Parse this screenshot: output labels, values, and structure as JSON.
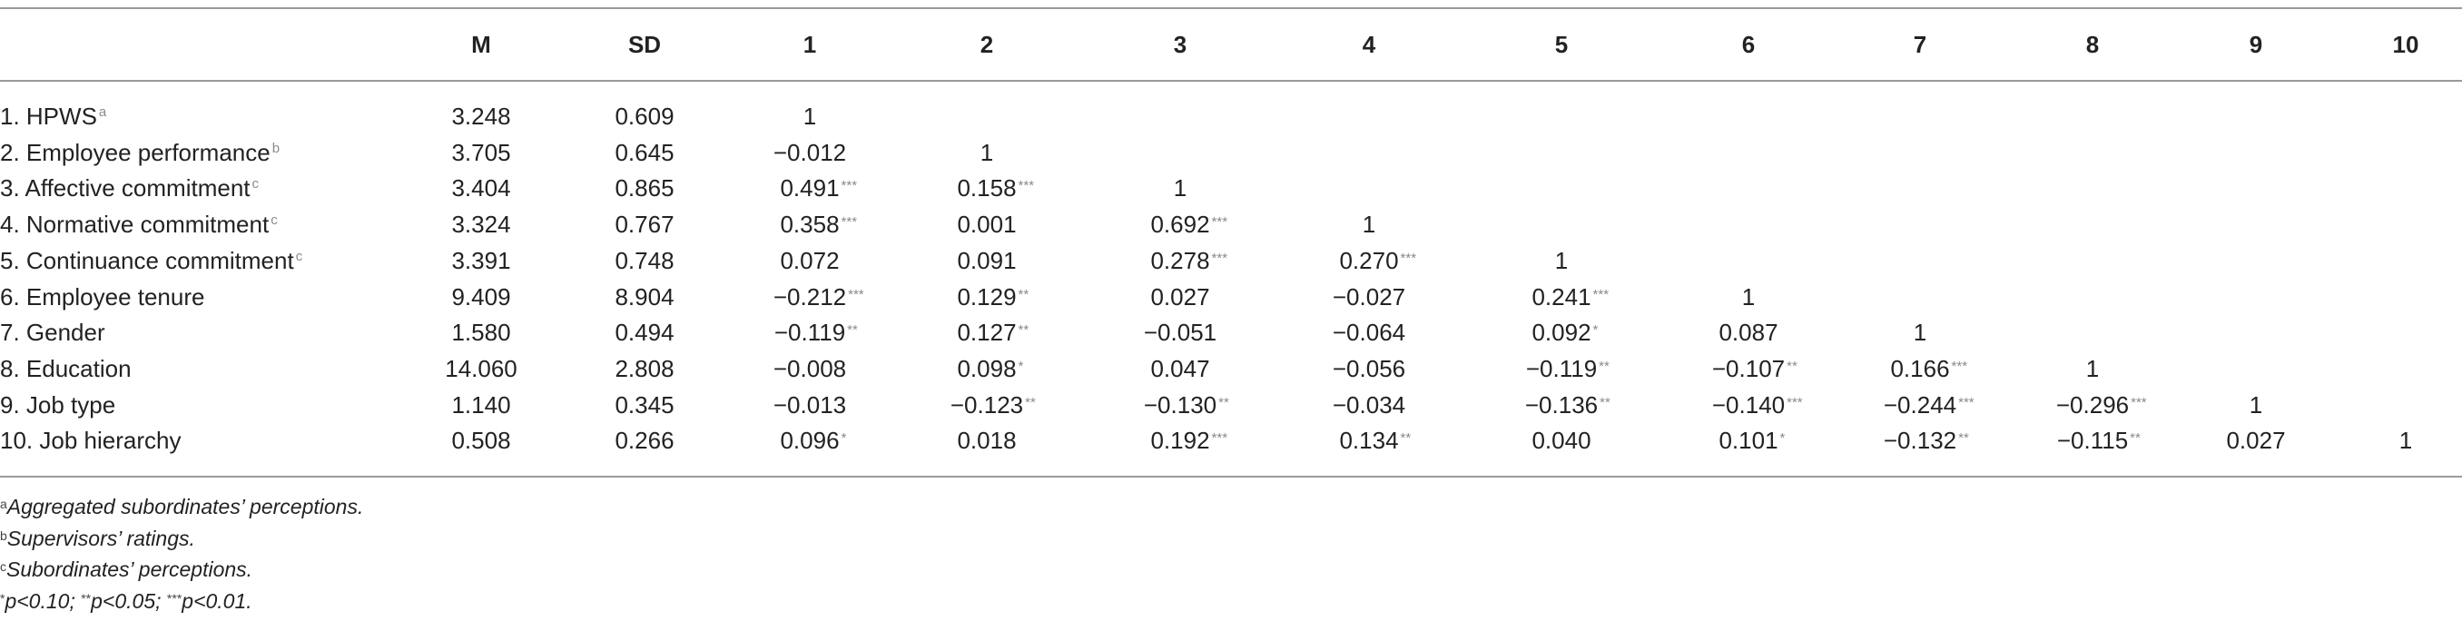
{
  "table": {
    "header": [
      "M",
      "SD",
      "1",
      "2",
      "3",
      "4",
      "5",
      "6",
      "7",
      "8",
      "9",
      "10"
    ],
    "rows": [
      {
        "label": "1. HPWS",
        "sup": "a",
        "cells": [
          {
            "text": "3.248"
          },
          {
            "text": "0.609"
          },
          {
            "text": "1"
          }
        ]
      },
      {
        "label": "2. Employee performance",
        "sup": "b",
        "cells": [
          {
            "text": "3.705"
          },
          {
            "text": "0.645"
          },
          {
            "text": "−0.012"
          },
          {
            "text": "1"
          }
        ]
      },
      {
        "label": "3. Affective commitment",
        "sup": "c",
        "cells": [
          {
            "text": "3.404"
          },
          {
            "text": "0.865"
          },
          {
            "text": "0.491",
            "sup": "***"
          },
          {
            "text": "0.158",
            "sup": "***"
          },
          {
            "text": "1"
          }
        ]
      },
      {
        "label": "4. Normative commitment",
        "sup": "c",
        "cells": [
          {
            "text": "3.324"
          },
          {
            "text": "0.767"
          },
          {
            "text": "0.358",
            "sup": "***"
          },
          {
            "text": "0.001"
          },
          {
            "text": "0.692",
            "sup": "***"
          },
          {
            "text": "1"
          }
        ]
      },
      {
        "label": "5. Continuance commitment",
        "sup": "c",
        "cells": [
          {
            "text": "3.391"
          },
          {
            "text": "0.748"
          },
          {
            "text": "0.072"
          },
          {
            "text": "0.091"
          },
          {
            "text": "0.278",
            "sup": "***"
          },
          {
            "text": "0.270",
            "sup": "***"
          },
          {
            "text": "1"
          }
        ]
      },
      {
        "label": "6. Employee tenure",
        "cells": [
          {
            "text": "9.409"
          },
          {
            "text": "8.904"
          },
          {
            "text": "−0.212",
            "sup": "***"
          },
          {
            "text": "0.129",
            "sup": "**"
          },
          {
            "text": "0.027"
          },
          {
            "text": "−0.027"
          },
          {
            "text": "0.241",
            "sup": "***"
          },
          {
            "text": "1"
          }
        ]
      },
      {
        "label": "7. Gender",
        "cells": [
          {
            "text": "1.580"
          },
          {
            "text": "0.494"
          },
          {
            "text": "−0.119",
            "sup": "**"
          },
          {
            "text": "0.127",
            "sup": "**"
          },
          {
            "text": "−0.051"
          },
          {
            "text": "−0.064"
          },
          {
            "text": "0.092",
            "sup": "*"
          },
          {
            "text": "0.087"
          },
          {
            "text": "1"
          }
        ]
      },
      {
        "label": "8. Education",
        "cells": [
          {
            "text": "14.060"
          },
          {
            "text": "2.808"
          },
          {
            "text": "−0.008"
          },
          {
            "text": "0.098",
            "sup": "*"
          },
          {
            "text": "0.047"
          },
          {
            "text": "−0.056"
          },
          {
            "text": "−0.119",
            "sup": "**"
          },
          {
            "text": "−0.107",
            "sup": "**"
          },
          {
            "text": "0.166",
            "sup": "***"
          },
          {
            "text": "1"
          }
        ]
      },
      {
        "label": "9. Job type",
        "cells": [
          {
            "text": "1.140"
          },
          {
            "text": "0.345"
          },
          {
            "text": "−0.013"
          },
          {
            "text": "−0.123",
            "sup": "**"
          },
          {
            "text": "−0.130",
            "sup": "**"
          },
          {
            "text": "−0.034"
          },
          {
            "text": "−0.136",
            "sup": "**"
          },
          {
            "text": "−0.140",
            "sup": "***"
          },
          {
            "text": "−0.244",
            "sup": "***"
          },
          {
            "text": "−0.296",
            "sup": "***"
          },
          {
            "text": "1"
          }
        ]
      },
      {
        "label": "10. Job hierarchy",
        "cells": [
          {
            "text": "0.508"
          },
          {
            "text": "0.266"
          },
          {
            "text": "0.096",
            "sup": "*"
          },
          {
            "text": "0.018"
          },
          {
            "text": "0.192",
            "sup": "***"
          },
          {
            "text": "0.134",
            "sup": "**"
          },
          {
            "text": "0.040"
          },
          {
            "text": "0.101",
            "sup": "*"
          },
          {
            "text": "−0.132",
            "sup": "**"
          },
          {
            "text": "−0.115",
            "sup": "**"
          },
          {
            "text": "0.027"
          },
          {
            "text": "1"
          }
        ]
      }
    ]
  },
  "footnotes": [
    [
      {
        "sup": "a",
        "text": "Aggregated subordinates’ perceptions."
      }
    ],
    [
      {
        "sup": "b",
        "text": "Supervisors’ ratings."
      }
    ],
    [
      {
        "sup": "c",
        "text": "Subordinates’ perceptions."
      }
    ],
    [
      {
        "sup": "*",
        "text": "p<0.10;"
      },
      {
        "sup": "**",
        "text": "p<0.05;"
      },
      {
        "sup": "***",
        "text": "p<0.01."
      }
    ]
  ]
}
